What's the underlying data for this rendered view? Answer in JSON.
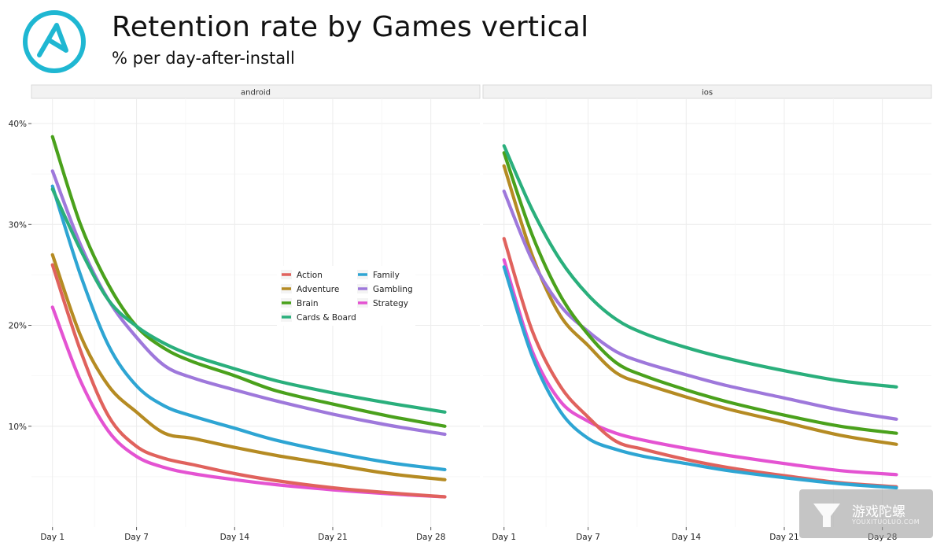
{
  "header": {
    "title": "Retention rate by Games vertical",
    "subtitle": "% per day-after-install"
  },
  "watermark": {
    "brand": "游戏陀螺",
    "url": "YOUXITUOLUO.COM"
  },
  "colors": {
    "Action": "#e0625d",
    "Adventure": "#b58b23",
    "Brain": "#4aa11c",
    "Cards & Board": "#2aaf7c",
    "Family": "#2ea5d3",
    "Gambling": "#9e78db",
    "Strategy": "#e453d2",
    "logo": "#1fb7d2",
    "strip": "#f2f2f2",
    "grid": "#ececec"
  },
  "chart_data": {
    "type": "line",
    "x_ticks": [
      1,
      7,
      14,
      21,
      28
    ],
    "x_tick_labels": [
      "Day 1",
      "Day 7",
      "Day 14",
      "Day 21",
      "Day 28"
    ],
    "y_ticks": [
      10,
      20,
      30,
      40
    ],
    "y_tick_labels": [
      "10%",
      "20%",
      "30%",
      "40%"
    ],
    "xlim": [
      -0.5,
      31.5
    ],
    "ylim": [
      0,
      42.5
    ],
    "legend": {
      "placement": "center-left-panel",
      "entries": [
        "Action",
        "Adventure",
        "Brain",
        "Cards & Board",
        "Family",
        "Gambling",
        "Strategy"
      ]
    },
    "panels": [
      {
        "name": "android",
        "series": [
          {
            "name": "Action",
            "points": [
              [
                1,
                26
              ],
              [
                3,
                17.5
              ],
              [
                5,
                11
              ],
              [
                7,
                8
              ],
              [
                9,
                6.8
              ],
              [
                11,
                6.2
              ],
              [
                14,
                5.3
              ],
              [
                17,
                4.6
              ],
              [
                21,
                3.9
              ],
              [
                25,
                3.4
              ],
              [
                29,
                3.0
              ]
            ]
          },
          {
            "name": "Adventure",
            "points": [
              [
                1,
                27
              ],
              [
                3,
                19
              ],
              [
                5,
                14
              ],
              [
                7,
                11.4
              ],
              [
                9,
                9.3
              ],
              [
                11,
                8.8
              ],
              [
                14,
                7.9
              ],
              [
                17,
                7.1
              ],
              [
                21,
                6.2
              ],
              [
                25,
                5.3
              ],
              [
                29,
                4.7
              ]
            ]
          },
          {
            "name": "Brain",
            "points": [
              [
                1,
                38.7
              ],
              [
                3,
                30
              ],
              [
                5,
                24
              ],
              [
                7,
                19.9
              ],
              [
                9,
                17.7
              ],
              [
                11,
                16.4
              ],
              [
                14,
                15.0
              ],
              [
                17,
                13.5
              ],
              [
                21,
                12.2
              ],
              [
                25,
                11.0
              ],
              [
                29,
                10.0
              ]
            ]
          },
          {
            "name": "Cards & Board",
            "points": [
              [
                1,
                33.5
              ],
              [
                3,
                27.5
              ],
              [
                5,
                22.5
              ],
              [
                7,
                19.9
              ],
              [
                9,
                18.2
              ],
              [
                11,
                17.0
              ],
              [
                14,
                15.7
              ],
              [
                17,
                14.5
              ],
              [
                21,
                13.3
              ],
              [
                25,
                12.3
              ],
              [
                29,
                11.4
              ]
            ]
          },
          {
            "name": "Family",
            "points": [
              [
                1,
                33.8
              ],
              [
                3,
                25
              ],
              [
                5,
                18
              ],
              [
                7,
                14
              ],
              [
                9,
                12
              ],
              [
                11,
                11
              ],
              [
                14,
                9.8
              ],
              [
                17,
                8.6
              ],
              [
                21,
                7.4
              ],
              [
                25,
                6.4
              ],
              [
                29,
                5.7
              ]
            ]
          },
          {
            "name": "Gambling",
            "points": [
              [
                1,
                35.3
              ],
              [
                3,
                28
              ],
              [
                5,
                22.5
              ],
              [
                7,
                18.8
              ],
              [
                9,
                16
              ],
              [
                11,
                14.8
              ],
              [
                14,
                13.6
              ],
              [
                17,
                12.5
              ],
              [
                21,
                11.2
              ],
              [
                25,
                10.1
              ],
              [
                29,
                9.2
              ]
            ]
          },
          {
            "name": "Strategy",
            "points": [
              [
                1,
                21.8
              ],
              [
                3,
                14.5
              ],
              [
                5,
                9.5
              ],
              [
                7,
                7
              ],
              [
                9,
                5.9
              ],
              [
                11,
                5.3
              ],
              [
                14,
                4.7
              ],
              [
                17,
                4.2
              ],
              [
                21,
                3.7
              ],
              [
                25,
                3.3
              ],
              [
                29,
                3.0
              ]
            ]
          }
        ]
      },
      {
        "name": "ios",
        "series": [
          {
            "name": "Action",
            "points": [
              [
                1,
                28.6
              ],
              [
                3,
                19.5
              ],
              [
                5,
                14
              ],
              [
                7,
                10.9
              ],
              [
                9,
                8.5
              ],
              [
                11,
                7.7
              ],
              [
                14,
                6.7
              ],
              [
                17,
                5.9
              ],
              [
                21,
                5.1
              ],
              [
                25,
                4.4
              ],
              [
                29,
                4.0
              ]
            ]
          },
          {
            "name": "Adventure",
            "points": [
              [
                1,
                35.8
              ],
              [
                3,
                27
              ],
              [
                5,
                21
              ],
              [
                7,
                18
              ],
              [
                9,
                15.3
              ],
              [
                11,
                14.2
              ],
              [
                14,
                12.9
              ],
              [
                17,
                11.7
              ],
              [
                21,
                10.4
              ],
              [
                25,
                9.1
              ],
              [
                29,
                8.2
              ]
            ]
          },
          {
            "name": "Brain",
            "points": [
              [
                1,
                37.1
              ],
              [
                3,
                29
              ],
              [
                5,
                23
              ],
              [
                7,
                19.1
              ],
              [
                9,
                16.3
              ],
              [
                11,
                15
              ],
              [
                14,
                13.6
              ],
              [
                17,
                12.4
              ],
              [
                21,
                11.1
              ],
              [
                25,
                10
              ],
              [
                29,
                9.3
              ]
            ]
          },
          {
            "name": "Cards & Board",
            "points": [
              [
                1,
                37.8
              ],
              [
                3,
                31.5
              ],
              [
                5,
                26.5
              ],
              [
                7,
                23
              ],
              [
                9,
                20.6
              ],
              [
                11,
                19.2
              ],
              [
                14,
                17.8
              ],
              [
                17,
                16.7
              ],
              [
                21,
                15.5
              ],
              [
                25,
                14.5
              ],
              [
                29,
                13.9
              ]
            ]
          },
          {
            "name": "Family",
            "points": [
              [
                1,
                25.8
              ],
              [
                3,
                17
              ],
              [
                5,
                11.5
              ],
              [
                7,
                8.8
              ],
              [
                9,
                7.7
              ],
              [
                11,
                7
              ],
              [
                14,
                6.3
              ],
              [
                17,
                5.6
              ],
              [
                21,
                4.9
              ],
              [
                25,
                4.3
              ],
              [
                29,
                3.9
              ]
            ]
          },
          {
            "name": "Gambling",
            "points": [
              [
                1,
                33.3
              ],
              [
                3,
                26.5
              ],
              [
                5,
                22
              ],
              [
                7,
                19.4
              ],
              [
                9,
                17.4
              ],
              [
                11,
                16.3
              ],
              [
                14,
                15.1
              ],
              [
                17,
                14
              ],
              [
                21,
                12.8
              ],
              [
                25,
                11.6
              ],
              [
                29,
                10.7
              ]
            ]
          },
          {
            "name": "Strategy",
            "points": [
              [
                1,
                26.5
              ],
              [
                3,
                17.5
              ],
              [
                5,
                12.5
              ],
              [
                7,
                10.5
              ],
              [
                9,
                9.3
              ],
              [
                11,
                8.6
              ],
              [
                14,
                7.8
              ],
              [
                17,
                7.1
              ],
              [
                21,
                6.3
              ],
              [
                25,
                5.6
              ],
              [
                29,
                5.2
              ]
            ]
          }
        ]
      }
    ]
  }
}
